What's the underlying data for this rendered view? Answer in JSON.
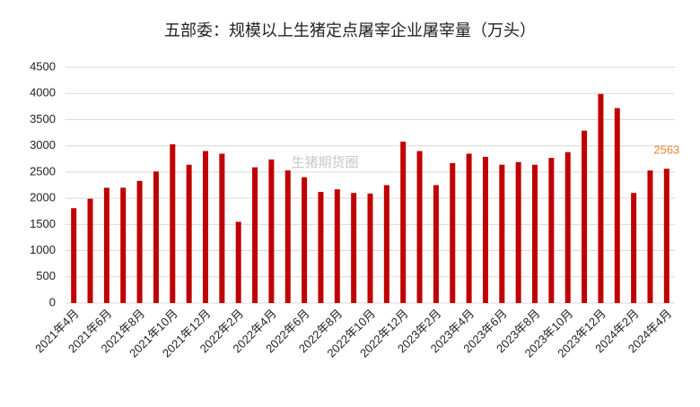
{
  "chart_data": {
    "type": "bar",
    "title": "五部委：规模以上生猪定点屠宰企业屠宰量（万头）",
    "watermark": "生猪期货圈",
    "categories": [
      "2021年4月",
      null,
      "2021年6月",
      null,
      "2021年8月",
      null,
      "2021年10月",
      null,
      "2021年12月",
      null,
      "2022年2月",
      null,
      "2022年4月",
      null,
      "2022年6月",
      null,
      "2022年8月",
      null,
      "2022年10月",
      null,
      "2022年12月",
      null,
      "2023年2月",
      null,
      "2023年4月",
      null,
      "2023年6月",
      null,
      "2023年8月",
      null,
      "2023年10月",
      null,
      "2023年12月",
      null,
      "2024年2月",
      null,
      "2024年4月"
    ],
    "values": [
      1810,
      1990,
      2200,
      2200,
      2330,
      2510,
      3030,
      2640,
      2900,
      2850,
      1550,
      2590,
      2740,
      2530,
      2400,
      2120,
      2170,
      2100,
      2090,
      2250,
      3080,
      2900,
      2250,
      2670,
      2850,
      2790,
      2640,
      2690,
      2640,
      2770,
      2880,
      3290,
      3990,
      3720,
      2100,
      2530,
      2563
    ],
    "value_labels": [
      null,
      null,
      null,
      null,
      null,
      null,
      null,
      null,
      null,
      null,
      null,
      null,
      null,
      null,
      null,
      null,
      null,
      null,
      null,
      null,
      null,
      null,
      null,
      null,
      null,
      null,
      null,
      null,
      null,
      null,
      null,
      null,
      null,
      null,
      null,
      null,
      "2563"
    ],
    "color": "#c00000",
    "label_color": "#e8853a",
    "ylim": [
      0,
      4500
    ],
    "yticks": [
      0,
      500,
      1000,
      1500,
      2000,
      2500,
      3000,
      3500,
      4000,
      4500
    ],
    "grid": true
  }
}
